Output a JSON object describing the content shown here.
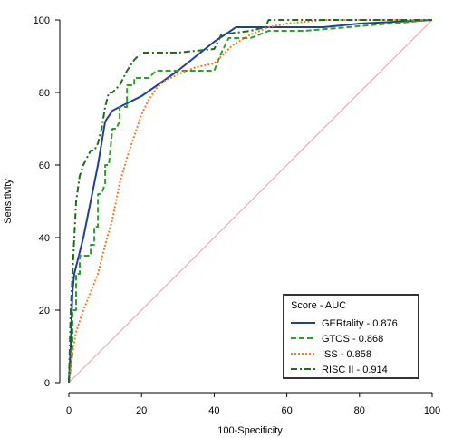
{
  "chart_data": {
    "type": "line",
    "xlabel": "100-Specificity",
    "ylabel": "Sensitivity",
    "xlim": [
      0,
      100
    ],
    "ylim": [
      0,
      100
    ],
    "xticks": [
      "0",
      "20",
      "40",
      "60",
      "80",
      "100"
    ],
    "yticks": [
      "0",
      "20",
      "40",
      "60",
      "80",
      "100"
    ],
    "grid": false,
    "legend": {
      "title": "Score - AUC",
      "position": "bottom-right"
    },
    "reference_line": {
      "x": [
        0,
        100
      ],
      "y": [
        0,
        100
      ],
      "color": "#e8a0a0"
    },
    "series": [
      {
        "name": "GERtality - 0.876",
        "color": "#1f3f99",
        "style": "solid",
        "x": [
          0,
          0.5,
          1,
          1.5,
          4,
          8,
          10,
          12,
          20,
          30,
          40,
          46,
          50,
          60,
          70,
          80,
          100
        ],
        "y": [
          0,
          10,
          25,
          30,
          40,
          60,
          72,
          75,
          79,
          86,
          94,
          98,
          98,
          98,
          98,
          99,
          100
        ]
      },
      {
        "name": "GTOS - 0.868",
        "color": "#2ca02c",
        "style": "dashed",
        "x": [
          0,
          1,
          1,
          2,
          2,
          3,
          3,
          4,
          6,
          6,
          7,
          7,
          8,
          8,
          9,
          10,
          10,
          11,
          12,
          13,
          14,
          14,
          16,
          16,
          18,
          18,
          20,
          22,
          24,
          26,
          30,
          35,
          40,
          42,
          44,
          50,
          55,
          65,
          100
        ],
        "y": [
          0,
          8,
          20,
          20,
          30,
          30,
          35,
          35,
          35,
          38,
          38,
          43,
          43,
          52,
          52,
          55,
          60,
          60,
          70,
          70,
          72,
          76,
          76,
          82,
          82,
          84,
          84,
          84,
          86,
          86,
          86,
          86,
          86,
          91,
          95,
          95,
          97,
          97,
          100
        ]
      },
      {
        "name": "ISS - 0.858",
        "color": "#f07a2a",
        "style": "dotted",
        "x": [
          0,
          1,
          2,
          4,
          6,
          8,
          10,
          12,
          14,
          16,
          18,
          20,
          22,
          24,
          26,
          30,
          35,
          40,
          45,
          50,
          55,
          60,
          70,
          100
        ],
        "y": [
          0,
          8,
          14,
          20,
          25,
          30,
          38,
          45,
          55,
          62,
          68,
          74,
          78,
          81,
          83,
          85,
          87,
          88,
          93,
          96,
          98,
          99,
          100,
          100
        ]
      },
      {
        "name": "RISC II - 0.914",
        "color": "#1e6b1e",
        "style": "dashdot",
        "x": [
          0,
          0.5,
          1,
          1.5,
          2,
          3,
          4,
          5,
          6,
          7,
          8,
          9,
          10,
          11,
          12,
          14,
          16,
          18,
          20,
          25,
          30,
          40,
          42,
          50,
          54,
          55,
          60,
          100
        ],
        "y": [
          0,
          20,
          30,
          40,
          50,
          57,
          60,
          62,
          64,
          64,
          66,
          70,
          76,
          80,
          80,
          82,
          86,
          89,
          91,
          91,
          91,
          92,
          96,
          97,
          98,
          100,
          100,
          100
        ]
      }
    ]
  }
}
